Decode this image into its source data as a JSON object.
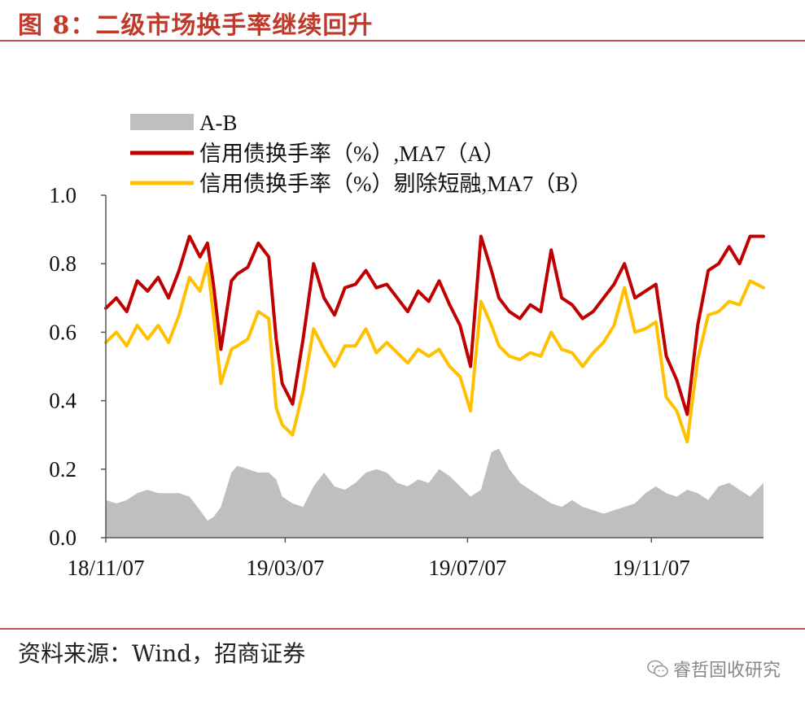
{
  "figure": {
    "title": "图 8：二级市场换手率继续回升",
    "source": "资料来源：Wind，招商证券",
    "watermark": "睿哲固收研究",
    "watermark_icon": "wechat-icon"
  },
  "chart_data": {
    "type": "line",
    "title": "",
    "xlabel": "",
    "ylabel": "",
    "ylim": [
      0.0,
      1.0
    ],
    "yticks": [
      "0.0",
      "0.2",
      "0.4",
      "0.6",
      "0.8",
      "1.0"
    ],
    "xticks": [
      "18/11/07",
      "19/03/07",
      "19/07/07",
      "19/11/07"
    ],
    "x_range": [
      "2018-11-07",
      "2020-01-21"
    ],
    "legend_position": "top-left",
    "grid": false,
    "series": [
      {
        "name": "A-B",
        "kind": "area",
        "color": "#bfbfbf",
        "points": [
          [
            "2018-11-07",
            0.11
          ],
          [
            "2018-11-14",
            0.1
          ],
          [
            "2018-11-21",
            0.11
          ],
          [
            "2018-11-28",
            0.13
          ],
          [
            "2018-12-05",
            0.14
          ],
          [
            "2018-12-12",
            0.13
          ],
          [
            "2018-12-19",
            0.13
          ],
          [
            "2018-12-26",
            0.13
          ],
          [
            "2019-01-02",
            0.12
          ],
          [
            "2019-01-09",
            0.08
          ],
          [
            "2019-01-14",
            0.05
          ],
          [
            "2019-01-18",
            0.06
          ],
          [
            "2019-01-23",
            0.09
          ],
          [
            "2019-01-30",
            0.19
          ],
          [
            "2019-02-03",
            0.21
          ],
          [
            "2019-02-10",
            0.2
          ],
          [
            "2019-02-17",
            0.19
          ],
          [
            "2019-02-24",
            0.19
          ],
          [
            "2019-03-01",
            0.17
          ],
          [
            "2019-03-05",
            0.12
          ],
          [
            "2019-03-12",
            0.1
          ],
          [
            "2019-03-19",
            0.09
          ],
          [
            "2019-03-26",
            0.15
          ],
          [
            "2019-04-02",
            0.19
          ],
          [
            "2019-04-09",
            0.15
          ],
          [
            "2019-04-16",
            0.14
          ],
          [
            "2019-04-23",
            0.16
          ],
          [
            "2019-04-30",
            0.19
          ],
          [
            "2019-05-07",
            0.2
          ],
          [
            "2019-05-14",
            0.19
          ],
          [
            "2019-05-21",
            0.16
          ],
          [
            "2019-05-28",
            0.15
          ],
          [
            "2019-06-04",
            0.17
          ],
          [
            "2019-06-11",
            0.16
          ],
          [
            "2019-06-18",
            0.2
          ],
          [
            "2019-06-25",
            0.18
          ],
          [
            "2019-07-02",
            0.15
          ],
          [
            "2019-07-09",
            0.12
          ],
          [
            "2019-07-16",
            0.14
          ],
          [
            "2019-07-23",
            0.25
          ],
          [
            "2019-07-28",
            0.26
          ],
          [
            "2019-08-04",
            0.2
          ],
          [
            "2019-08-11",
            0.16
          ],
          [
            "2019-08-18",
            0.14
          ],
          [
            "2019-08-25",
            0.12
          ],
          [
            "2019-09-01",
            0.1
          ],
          [
            "2019-09-08",
            0.09
          ],
          [
            "2019-09-15",
            0.11
          ],
          [
            "2019-09-22",
            0.09
          ],
          [
            "2019-09-29",
            0.08
          ],
          [
            "2019-10-06",
            0.07
          ],
          [
            "2019-10-13",
            0.08
          ],
          [
            "2019-10-20",
            0.09
          ],
          [
            "2019-10-27",
            0.1
          ],
          [
            "2019-11-03",
            0.13
          ],
          [
            "2019-11-10",
            0.15
          ],
          [
            "2019-11-17",
            0.13
          ],
          [
            "2019-11-24",
            0.12
          ],
          [
            "2019-12-01",
            0.14
          ],
          [
            "2019-12-08",
            0.13
          ],
          [
            "2019-12-15",
            0.11
          ],
          [
            "2019-12-22",
            0.15
          ],
          [
            "2019-12-29",
            0.16
          ],
          [
            "2020-01-05",
            0.14
          ],
          [
            "2020-01-12",
            0.12
          ],
          [
            "2020-01-21",
            0.16
          ]
        ]
      },
      {
        "name": "信用债换手率（%）,MA7（A）",
        "kind": "line",
        "color": "#c00000",
        "points": [
          [
            "2018-11-07",
            0.67
          ],
          [
            "2018-11-14",
            0.7
          ],
          [
            "2018-11-21",
            0.66
          ],
          [
            "2018-11-28",
            0.75
          ],
          [
            "2018-12-05",
            0.72
          ],
          [
            "2018-12-12",
            0.76
          ],
          [
            "2018-12-19",
            0.7
          ],
          [
            "2018-12-26",
            0.78
          ],
          [
            "2019-01-02",
            0.88
          ],
          [
            "2019-01-09",
            0.82
          ],
          [
            "2019-01-14",
            0.86
          ],
          [
            "2019-01-18",
            0.74
          ],
          [
            "2019-01-23",
            0.55
          ],
          [
            "2019-01-30",
            0.75
          ],
          [
            "2019-02-03",
            0.77
          ],
          [
            "2019-02-10",
            0.79
          ],
          [
            "2019-02-17",
            0.86
          ],
          [
            "2019-02-24",
            0.82
          ],
          [
            "2019-03-01",
            0.58
          ],
          [
            "2019-03-05",
            0.45
          ],
          [
            "2019-03-12",
            0.39
          ],
          [
            "2019-03-19",
            0.58
          ],
          [
            "2019-03-26",
            0.8
          ],
          [
            "2019-04-02",
            0.7
          ],
          [
            "2019-04-09",
            0.65
          ],
          [
            "2019-04-16",
            0.73
          ],
          [
            "2019-04-23",
            0.74
          ],
          [
            "2019-04-30",
            0.78
          ],
          [
            "2019-05-07",
            0.73
          ],
          [
            "2019-05-14",
            0.74
          ],
          [
            "2019-05-21",
            0.7
          ],
          [
            "2019-05-28",
            0.66
          ],
          [
            "2019-06-04",
            0.72
          ],
          [
            "2019-06-11",
            0.69
          ],
          [
            "2019-06-18",
            0.75
          ],
          [
            "2019-06-25",
            0.68
          ],
          [
            "2019-07-02",
            0.62
          ],
          [
            "2019-07-09",
            0.5
          ],
          [
            "2019-07-16",
            0.88
          ],
          [
            "2019-07-23",
            0.78
          ],
          [
            "2019-07-28",
            0.7
          ],
          [
            "2019-08-04",
            0.66
          ],
          [
            "2019-08-11",
            0.64
          ],
          [
            "2019-08-18",
            0.68
          ],
          [
            "2019-08-25",
            0.66
          ],
          [
            "2019-09-01",
            0.84
          ],
          [
            "2019-09-08",
            0.7
          ],
          [
            "2019-09-15",
            0.68
          ],
          [
            "2019-09-22",
            0.64
          ],
          [
            "2019-09-29",
            0.66
          ],
          [
            "2019-10-06",
            0.7
          ],
          [
            "2019-10-13",
            0.74
          ],
          [
            "2019-10-20",
            0.8
          ],
          [
            "2019-10-27",
            0.7
          ],
          [
            "2019-11-03",
            0.72
          ],
          [
            "2019-11-10",
            0.74
          ],
          [
            "2019-11-17",
            0.53
          ],
          [
            "2019-11-24",
            0.46
          ],
          [
            "2019-12-01",
            0.36
          ],
          [
            "2019-12-08",
            0.62
          ],
          [
            "2019-12-15",
            0.78
          ],
          [
            "2019-12-22",
            0.8
          ],
          [
            "2019-12-29",
            0.85
          ],
          [
            "2020-01-05",
            0.8
          ],
          [
            "2020-01-12",
            0.88
          ],
          [
            "2020-01-21",
            0.88
          ]
        ]
      },
      {
        "name": "信用债换手率（%）剔除短融,MA7（B）",
        "kind": "line",
        "color": "#ffc000",
        "points": [
          [
            "2018-11-07",
            0.57
          ],
          [
            "2018-11-14",
            0.6
          ],
          [
            "2018-11-21",
            0.56
          ],
          [
            "2018-11-28",
            0.62
          ],
          [
            "2018-12-05",
            0.58
          ],
          [
            "2018-12-12",
            0.62
          ],
          [
            "2018-12-19",
            0.57
          ],
          [
            "2018-12-26",
            0.65
          ],
          [
            "2019-01-02",
            0.76
          ],
          [
            "2019-01-09",
            0.72
          ],
          [
            "2019-01-14",
            0.8
          ],
          [
            "2019-01-18",
            0.65
          ],
          [
            "2019-01-23",
            0.45
          ],
          [
            "2019-01-30",
            0.55
          ],
          [
            "2019-02-03",
            0.56
          ],
          [
            "2019-02-10",
            0.58
          ],
          [
            "2019-02-17",
            0.66
          ],
          [
            "2019-02-24",
            0.64
          ],
          [
            "2019-03-01",
            0.38
          ],
          [
            "2019-03-05",
            0.33
          ],
          [
            "2019-03-12",
            0.3
          ],
          [
            "2019-03-19",
            0.43
          ],
          [
            "2019-03-26",
            0.61
          ],
          [
            "2019-04-02",
            0.55
          ],
          [
            "2019-04-09",
            0.5
          ],
          [
            "2019-04-16",
            0.56
          ],
          [
            "2019-04-23",
            0.56
          ],
          [
            "2019-04-30",
            0.61
          ],
          [
            "2019-05-07",
            0.54
          ],
          [
            "2019-05-14",
            0.57
          ],
          [
            "2019-05-21",
            0.54
          ],
          [
            "2019-05-28",
            0.51
          ],
          [
            "2019-06-04",
            0.55
          ],
          [
            "2019-06-11",
            0.53
          ],
          [
            "2019-06-18",
            0.55
          ],
          [
            "2019-06-25",
            0.5
          ],
          [
            "2019-07-02",
            0.47
          ],
          [
            "2019-07-09",
            0.37
          ],
          [
            "2019-07-16",
            0.69
          ],
          [
            "2019-07-23",
            0.62
          ],
          [
            "2019-07-28",
            0.56
          ],
          [
            "2019-08-04",
            0.53
          ],
          [
            "2019-08-11",
            0.52
          ],
          [
            "2019-08-18",
            0.54
          ],
          [
            "2019-08-25",
            0.53
          ],
          [
            "2019-09-01",
            0.6
          ],
          [
            "2019-09-08",
            0.55
          ],
          [
            "2019-09-15",
            0.54
          ],
          [
            "2019-09-22",
            0.5
          ],
          [
            "2019-09-29",
            0.54
          ],
          [
            "2019-10-06",
            0.57
          ],
          [
            "2019-10-13",
            0.62
          ],
          [
            "2019-10-20",
            0.73
          ],
          [
            "2019-10-27",
            0.6
          ],
          [
            "2019-11-03",
            0.61
          ],
          [
            "2019-11-10",
            0.63
          ],
          [
            "2019-11-17",
            0.41
          ],
          [
            "2019-11-24",
            0.37
          ],
          [
            "2019-12-01",
            0.28
          ],
          [
            "2019-12-08",
            0.52
          ],
          [
            "2019-12-15",
            0.65
          ],
          [
            "2019-12-22",
            0.66
          ],
          [
            "2019-12-29",
            0.69
          ],
          [
            "2020-01-05",
            0.68
          ],
          [
            "2020-01-12",
            0.75
          ],
          [
            "2020-01-21",
            0.73
          ]
        ]
      }
    ]
  }
}
